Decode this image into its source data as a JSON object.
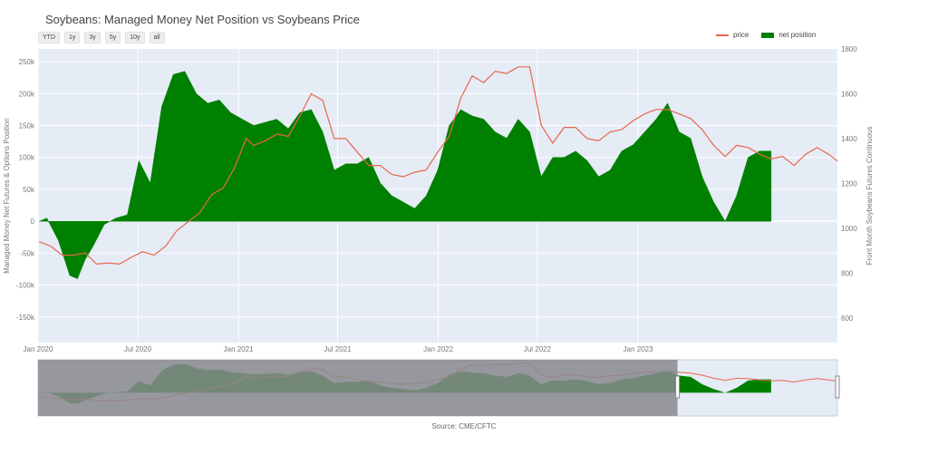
{
  "title": "Soybeans: Managed Money Net Position vs Soybeans Price",
  "range_buttons": [
    "YTD",
    "1y",
    "3y",
    "5y",
    "10y",
    "all"
  ],
  "source": "Source: CME/CFTC",
  "colors": {
    "price": "#e8664b",
    "net": "#008000",
    "plot_bg": "#e5ecf6",
    "slider_mask": "#888a8e",
    "slider_net": "#0b5d0b"
  },
  "chart_data": {
    "type": "area",
    "title": "Soybeans: Managed Money Net Position vs Soybeans Price",
    "y_left_label": "Managed Money Net Futures & Options Position",
    "y_right_label": "Front Month Soybeans Futures Continuous",
    "x_range": [
      "2020-01-01",
      "2023-12-31"
    ],
    "y_left_range": [
      -190000,
      270000
    ],
    "y_right_range": [
      490,
      1800
    ],
    "x_ticks": [
      {
        "date": "2020-01-01",
        "label": "Jan 2020"
      },
      {
        "date": "2020-07-01",
        "label": "Jul 2020"
      },
      {
        "date": "2021-01-01",
        "label": "Jan 2021"
      },
      {
        "date": "2021-07-01",
        "label": "Jul 2021"
      },
      {
        "date": "2022-01-01",
        "label": "Jan 2022"
      },
      {
        "date": "2022-07-01",
        "label": "Jul 2022"
      },
      {
        "date": "2023-01-01",
        "label": "Jan 2023"
      }
    ],
    "y_left_ticks": [
      {
        "v": 250000,
        "label": "250k"
      },
      {
        "v": 200000,
        "label": "200k"
      },
      {
        "v": 150000,
        "label": "150k"
      },
      {
        "v": 100000,
        "label": "100k"
      },
      {
        "v": 50000,
        "label": "50k"
      },
      {
        "v": 0,
        "label": "0"
      },
      {
        "v": -50000,
        "label": "-50k"
      },
      {
        "v": -100000,
        "label": "-100k"
      },
      {
        "v": -150000,
        "label": "-150k"
      }
    ],
    "y_right_ticks": [
      {
        "v": 1800,
        "label": "1800"
      },
      {
        "v": 1600,
        "label": "1600"
      },
      {
        "v": 1400,
        "label": "1400"
      },
      {
        "v": 1200,
        "label": "1200"
      },
      {
        "v": 1000,
        "label": "1000"
      },
      {
        "v": 800,
        "label": "800"
      },
      {
        "v": 600,
        "label": "600"
      }
    ],
    "grid": true,
    "legend_position": "top-right",
    "series": [
      {
        "name": "price",
        "axis": "right",
        "kind": "line",
        "points": [
          [
            "2020-01-03",
            940
          ],
          [
            "2020-01-24",
            920
          ],
          [
            "2020-02-14",
            880
          ],
          [
            "2020-03-06",
            880
          ],
          [
            "2020-03-27",
            890
          ],
          [
            "2020-04-17",
            840
          ],
          [
            "2020-05-08",
            845
          ],
          [
            "2020-05-29",
            840
          ],
          [
            "2020-06-19",
            870
          ],
          [
            "2020-07-10",
            895
          ],
          [
            "2020-07-31",
            880
          ],
          [
            "2020-08-21",
            920
          ],
          [
            "2020-09-11",
            990
          ],
          [
            "2020-10-02",
            1030
          ],
          [
            "2020-10-23",
            1070
          ],
          [
            "2020-11-13",
            1150
          ],
          [
            "2020-12-04",
            1180
          ],
          [
            "2020-12-25",
            1270
          ],
          [
            "2021-01-15",
            1400
          ],
          [
            "2021-01-29",
            1370
          ],
          [
            "2021-02-19",
            1390
          ],
          [
            "2021-03-12",
            1420
          ],
          [
            "2021-04-02",
            1410
          ],
          [
            "2021-04-23",
            1500
          ],
          [
            "2021-05-14",
            1600
          ],
          [
            "2021-06-04",
            1570
          ],
          [
            "2021-06-25",
            1400
          ],
          [
            "2021-07-16",
            1400
          ],
          [
            "2021-08-06",
            1340
          ],
          [
            "2021-08-27",
            1280
          ],
          [
            "2021-09-17",
            1280
          ],
          [
            "2021-10-08",
            1240
          ],
          [
            "2021-10-29",
            1230
          ],
          [
            "2021-11-19",
            1250
          ],
          [
            "2021-12-10",
            1260
          ],
          [
            "2021-12-31",
            1340
          ],
          [
            "2022-01-21",
            1410
          ],
          [
            "2022-02-11",
            1580
          ],
          [
            "2022-03-04",
            1680
          ],
          [
            "2022-03-25",
            1650
          ],
          [
            "2022-04-15",
            1700
          ],
          [
            "2022-05-06",
            1690
          ],
          [
            "2022-05-27",
            1720
          ],
          [
            "2022-06-17",
            1720
          ],
          [
            "2022-07-08",
            1460
          ],
          [
            "2022-07-29",
            1380
          ],
          [
            "2022-08-19",
            1450
          ],
          [
            "2022-09-09",
            1450
          ],
          [
            "2022-09-30",
            1400
          ],
          [
            "2022-10-21",
            1390
          ],
          [
            "2022-11-11",
            1430
          ],
          [
            "2022-12-02",
            1440
          ],
          [
            "2022-12-23",
            1480
          ],
          [
            "2023-01-13",
            1510
          ],
          [
            "2023-02-03",
            1530
          ],
          [
            "2023-02-24",
            1530
          ],
          [
            "2023-03-17",
            1510
          ],
          [
            "2023-04-07",
            1490
          ],
          [
            "2023-04-28",
            1440
          ],
          [
            "2023-05-19",
            1370
          ],
          [
            "2023-06-09",
            1320
          ],
          [
            "2023-06-30",
            1370
          ],
          [
            "2023-07-21",
            1360
          ],
          [
            "2023-08-11",
            1330
          ],
          [
            "2023-09-01",
            1310
          ],
          [
            "2023-09-22",
            1320
          ],
          [
            "2023-10-13",
            1280
          ],
          [
            "2023-11-03",
            1330
          ],
          [
            "2023-11-24",
            1360
          ],
          [
            "2023-12-15",
            1330
          ],
          [
            "2023-12-31",
            1300
          ]
        ]
      },
      {
        "name": "net position",
        "axis": "left",
        "kind": "area",
        "points": [
          [
            "2020-01-03",
            0
          ],
          [
            "2020-01-17",
            5000
          ],
          [
            "2020-02-07",
            -30000
          ],
          [
            "2020-02-28",
            -85000
          ],
          [
            "2020-03-13",
            -90000
          ],
          [
            "2020-03-27",
            -60000
          ],
          [
            "2020-04-10",
            -40000
          ],
          [
            "2020-05-01",
            -5000
          ],
          [
            "2020-05-22",
            5000
          ],
          [
            "2020-06-12",
            10000
          ],
          [
            "2020-07-03",
            95000
          ],
          [
            "2020-07-24",
            60000
          ],
          [
            "2020-08-14",
            180000
          ],
          [
            "2020-09-04",
            230000
          ],
          [
            "2020-09-25",
            235000
          ],
          [
            "2020-10-16",
            200000
          ],
          [
            "2020-11-06",
            185000
          ],
          [
            "2020-11-27",
            190000
          ],
          [
            "2020-12-18",
            170000
          ],
          [
            "2021-01-08",
            160000
          ],
          [
            "2021-01-29",
            150000
          ],
          [
            "2021-02-19",
            155000
          ],
          [
            "2021-03-12",
            160000
          ],
          [
            "2021-04-02",
            145000
          ],
          [
            "2021-04-23",
            170000
          ],
          [
            "2021-05-14",
            175000
          ],
          [
            "2021-06-04",
            140000
          ],
          [
            "2021-06-25",
            80000
          ],
          [
            "2021-07-16",
            90000
          ],
          [
            "2021-08-06",
            90000
          ],
          [
            "2021-08-27",
            100000
          ],
          [
            "2021-09-17",
            60000
          ],
          [
            "2021-10-08",
            40000
          ],
          [
            "2021-10-29",
            30000
          ],
          [
            "2021-11-19",
            20000
          ],
          [
            "2021-12-10",
            40000
          ],
          [
            "2021-12-31",
            80000
          ],
          [
            "2022-01-21",
            150000
          ],
          [
            "2022-02-11",
            175000
          ],
          [
            "2022-03-04",
            165000
          ],
          [
            "2022-03-25",
            160000
          ],
          [
            "2022-04-15",
            140000
          ],
          [
            "2022-05-06",
            130000
          ],
          [
            "2022-05-27",
            160000
          ],
          [
            "2022-06-17",
            140000
          ],
          [
            "2022-07-08",
            70000
          ],
          [
            "2022-07-29",
            100000
          ],
          [
            "2022-08-19",
            100000
          ],
          [
            "2022-09-09",
            110000
          ],
          [
            "2022-09-30",
            95000
          ],
          [
            "2022-10-21",
            70000
          ],
          [
            "2022-11-11",
            80000
          ],
          [
            "2022-12-02",
            110000
          ],
          [
            "2022-12-23",
            120000
          ],
          [
            "2023-01-13",
            140000
          ],
          [
            "2023-02-03",
            160000
          ],
          [
            "2023-02-24",
            185000
          ],
          [
            "2023-03-17",
            140000
          ],
          [
            "2023-04-07",
            130000
          ],
          [
            "2023-04-28",
            70000
          ],
          [
            "2023-05-19",
            30000
          ],
          [
            "2023-06-09",
            0
          ],
          [
            "2023-06-30",
            40000
          ],
          [
            "2023-07-21",
            100000
          ],
          [
            "2023-08-11",
            110000
          ],
          [
            "2023-09-01",
            110000
          ]
        ]
      }
    ]
  }
}
